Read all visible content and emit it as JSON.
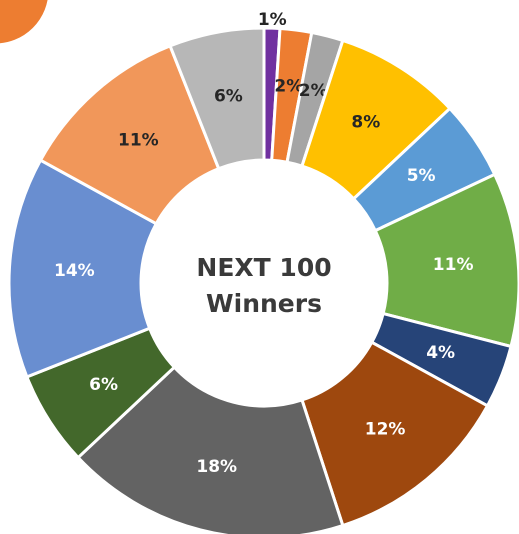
{
  "chart_data": {
    "type": "donut",
    "center_text": [
      "NEXT 100",
      "Winners"
    ],
    "values": [
      1,
      2,
      2,
      8,
      5,
      11,
      4,
      12,
      18,
      6,
      14,
      11,
      6
    ],
    "value_labels": [
      "1%",
      "2%",
      "2%",
      "8%",
      "5%",
      "11%",
      "4%",
      "12%",
      "18%",
      "6%",
      "14%",
      "11%",
      "6%"
    ],
    "colors": [
      "#7030a0",
      "#ed7d31",
      "#a5a5a5",
      "#ffc000",
      "#5b9bd5",
      "#70ad47",
      "#264478",
      "#9e480e",
      "#636363",
      "#43682b",
      "#698ed0",
      "#f1975a",
      "#b7b7b7"
    ],
    "label_colors": [
      "#262626",
      "#262626",
      "#262626",
      "#262626",
      "#ffffff",
      "#ffffff",
      "#ffffff",
      "#ffffff",
      "#ffffff",
      "#ffffff",
      "#ffffff",
      "#262626",
      "#262626"
    ]
  }
}
